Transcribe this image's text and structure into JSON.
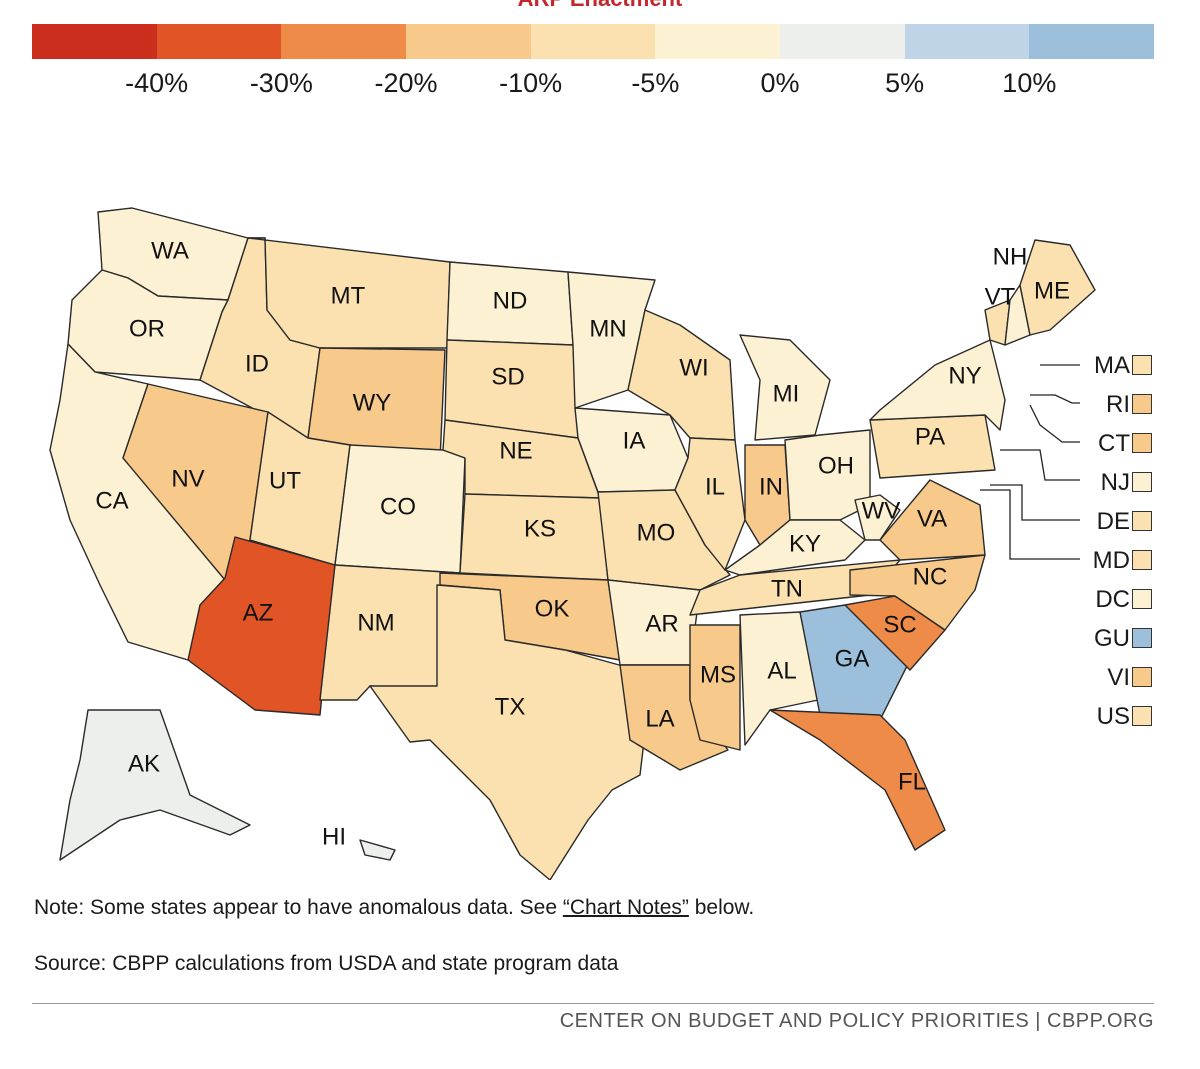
{
  "header": {
    "title": "ARP Enactment"
  },
  "legend": {
    "colors": [
      "#cc2e1e",
      "#e05426",
      "#ee8b48",
      "#f7c98a",
      "#fbe0b0",
      "#fdf1d4",
      "#ecefec",
      "#bfd4e6",
      "#9cc0dc"
    ],
    "ticks": [
      "-40%",
      "-30%",
      "-20%",
      "-10%",
      "-5%",
      "0%",
      "5%",
      "10%"
    ]
  },
  "states": {
    "WA": {
      "label": "WA",
      "color": "#fdf1d4"
    },
    "OR": {
      "label": "OR",
      "color": "#fdf1d4"
    },
    "CA": {
      "label": "CA",
      "color": "#fdf1d4"
    },
    "ID": {
      "label": "ID",
      "color": "#fbe0b0"
    },
    "NV": {
      "label": "NV",
      "color": "#f7c98a"
    },
    "MT": {
      "label": "MT",
      "color": "#fbe0b0"
    },
    "WY": {
      "label": "WY",
      "color": "#f7c98a"
    },
    "UT": {
      "label": "UT",
      "color": "#fbe0b0"
    },
    "AZ": {
      "label": "AZ",
      "color": "#e05426"
    },
    "CO": {
      "label": "CO",
      "color": "#fdf1d4"
    },
    "NM": {
      "label": "NM",
      "color": "#fbe0b0"
    },
    "ND": {
      "label": "ND",
      "color": "#fdf1d4"
    },
    "SD": {
      "label": "SD",
      "color": "#fbe0b0"
    },
    "NE": {
      "label": "NE",
      "color": "#fbe0b0"
    },
    "KS": {
      "label": "KS",
      "color": "#fbe0b0"
    },
    "OK": {
      "label": "OK",
      "color": "#f7c98a"
    },
    "TX": {
      "label": "TX",
      "color": "#fbe0b0"
    },
    "MN": {
      "label": "MN",
      "color": "#fdf1d4"
    },
    "IA": {
      "label": "IA",
      "color": "#fdf1d4"
    },
    "MO": {
      "label": "MO",
      "color": "#fbe0b0"
    },
    "AR": {
      "label": "AR",
      "color": "#fdf1d4"
    },
    "LA": {
      "label": "LA",
      "color": "#f7c98a"
    },
    "WI": {
      "label": "WI",
      "color": "#fbe0b0"
    },
    "IL": {
      "label": "IL",
      "color": "#fbe0b0"
    },
    "MS": {
      "label": "MS",
      "color": "#f7c98a"
    },
    "MI": {
      "label": "MI",
      "color": "#fdf1d4"
    },
    "IN": {
      "label": "IN",
      "color": "#f7c98a"
    },
    "OH": {
      "label": "OH",
      "color": "#fdf1d4"
    },
    "KY": {
      "label": "KY",
      "color": "#fdf1d4"
    },
    "TN": {
      "label": "TN",
      "color": "#fbe0b0"
    },
    "AL": {
      "label": "AL",
      "color": "#fdf1d4"
    },
    "GA": {
      "label": "GA",
      "color": "#9cc0dc"
    },
    "FL": {
      "label": "FL",
      "color": "#ee8b48"
    },
    "SC": {
      "label": "SC",
      "color": "#ee8b48"
    },
    "NC": {
      "label": "NC",
      "color": "#f7c98a"
    },
    "VA": {
      "label": "VA",
      "color": "#f7c98a"
    },
    "WV": {
      "label": "WV",
      "color": "#fdf1d4"
    },
    "PA": {
      "label": "PA",
      "color": "#fbe0b0"
    },
    "NY": {
      "label": "NY",
      "color": "#fdf1d4"
    },
    "VT": {
      "label": "VT",
      "color": "#fbe0b0"
    },
    "NH": {
      "label": "NH",
      "color": "#fdf1d4"
    },
    "ME": {
      "label": "ME",
      "color": "#fbe0b0"
    },
    "AK": {
      "label": "AK",
      "color": "#ecefec"
    },
    "HI": {
      "label": "HI",
      "color": "#ecefec"
    }
  },
  "small_states": [
    {
      "code": "MA",
      "color": "#fbe0b0"
    },
    {
      "code": "RI",
      "color": "#f7c98a"
    },
    {
      "code": "CT",
      "color": "#f7c98a"
    },
    {
      "code": "NJ",
      "color": "#fdf1d4"
    },
    {
      "code": "DE",
      "color": "#fbe0b0"
    },
    {
      "code": "MD",
      "color": "#fbe0b0"
    },
    {
      "code": "DC",
      "color": "#fdf1d4"
    },
    {
      "code": "GU",
      "color": "#9cc0dc"
    },
    {
      "code": "VI",
      "color": "#f7c98a"
    },
    {
      "code": "US",
      "color": "#fbe0b0"
    }
  ],
  "note": {
    "prefix": "Note: Some states appear to have anomalous data. See ",
    "link": "“Chart Notes”",
    "suffix": " below."
  },
  "source": "Source: CBPP calculations from USDA and state program data",
  "footer": "CENTER ON BUDGET AND POLICY PRIORITIES | CBPP.ORG"
}
